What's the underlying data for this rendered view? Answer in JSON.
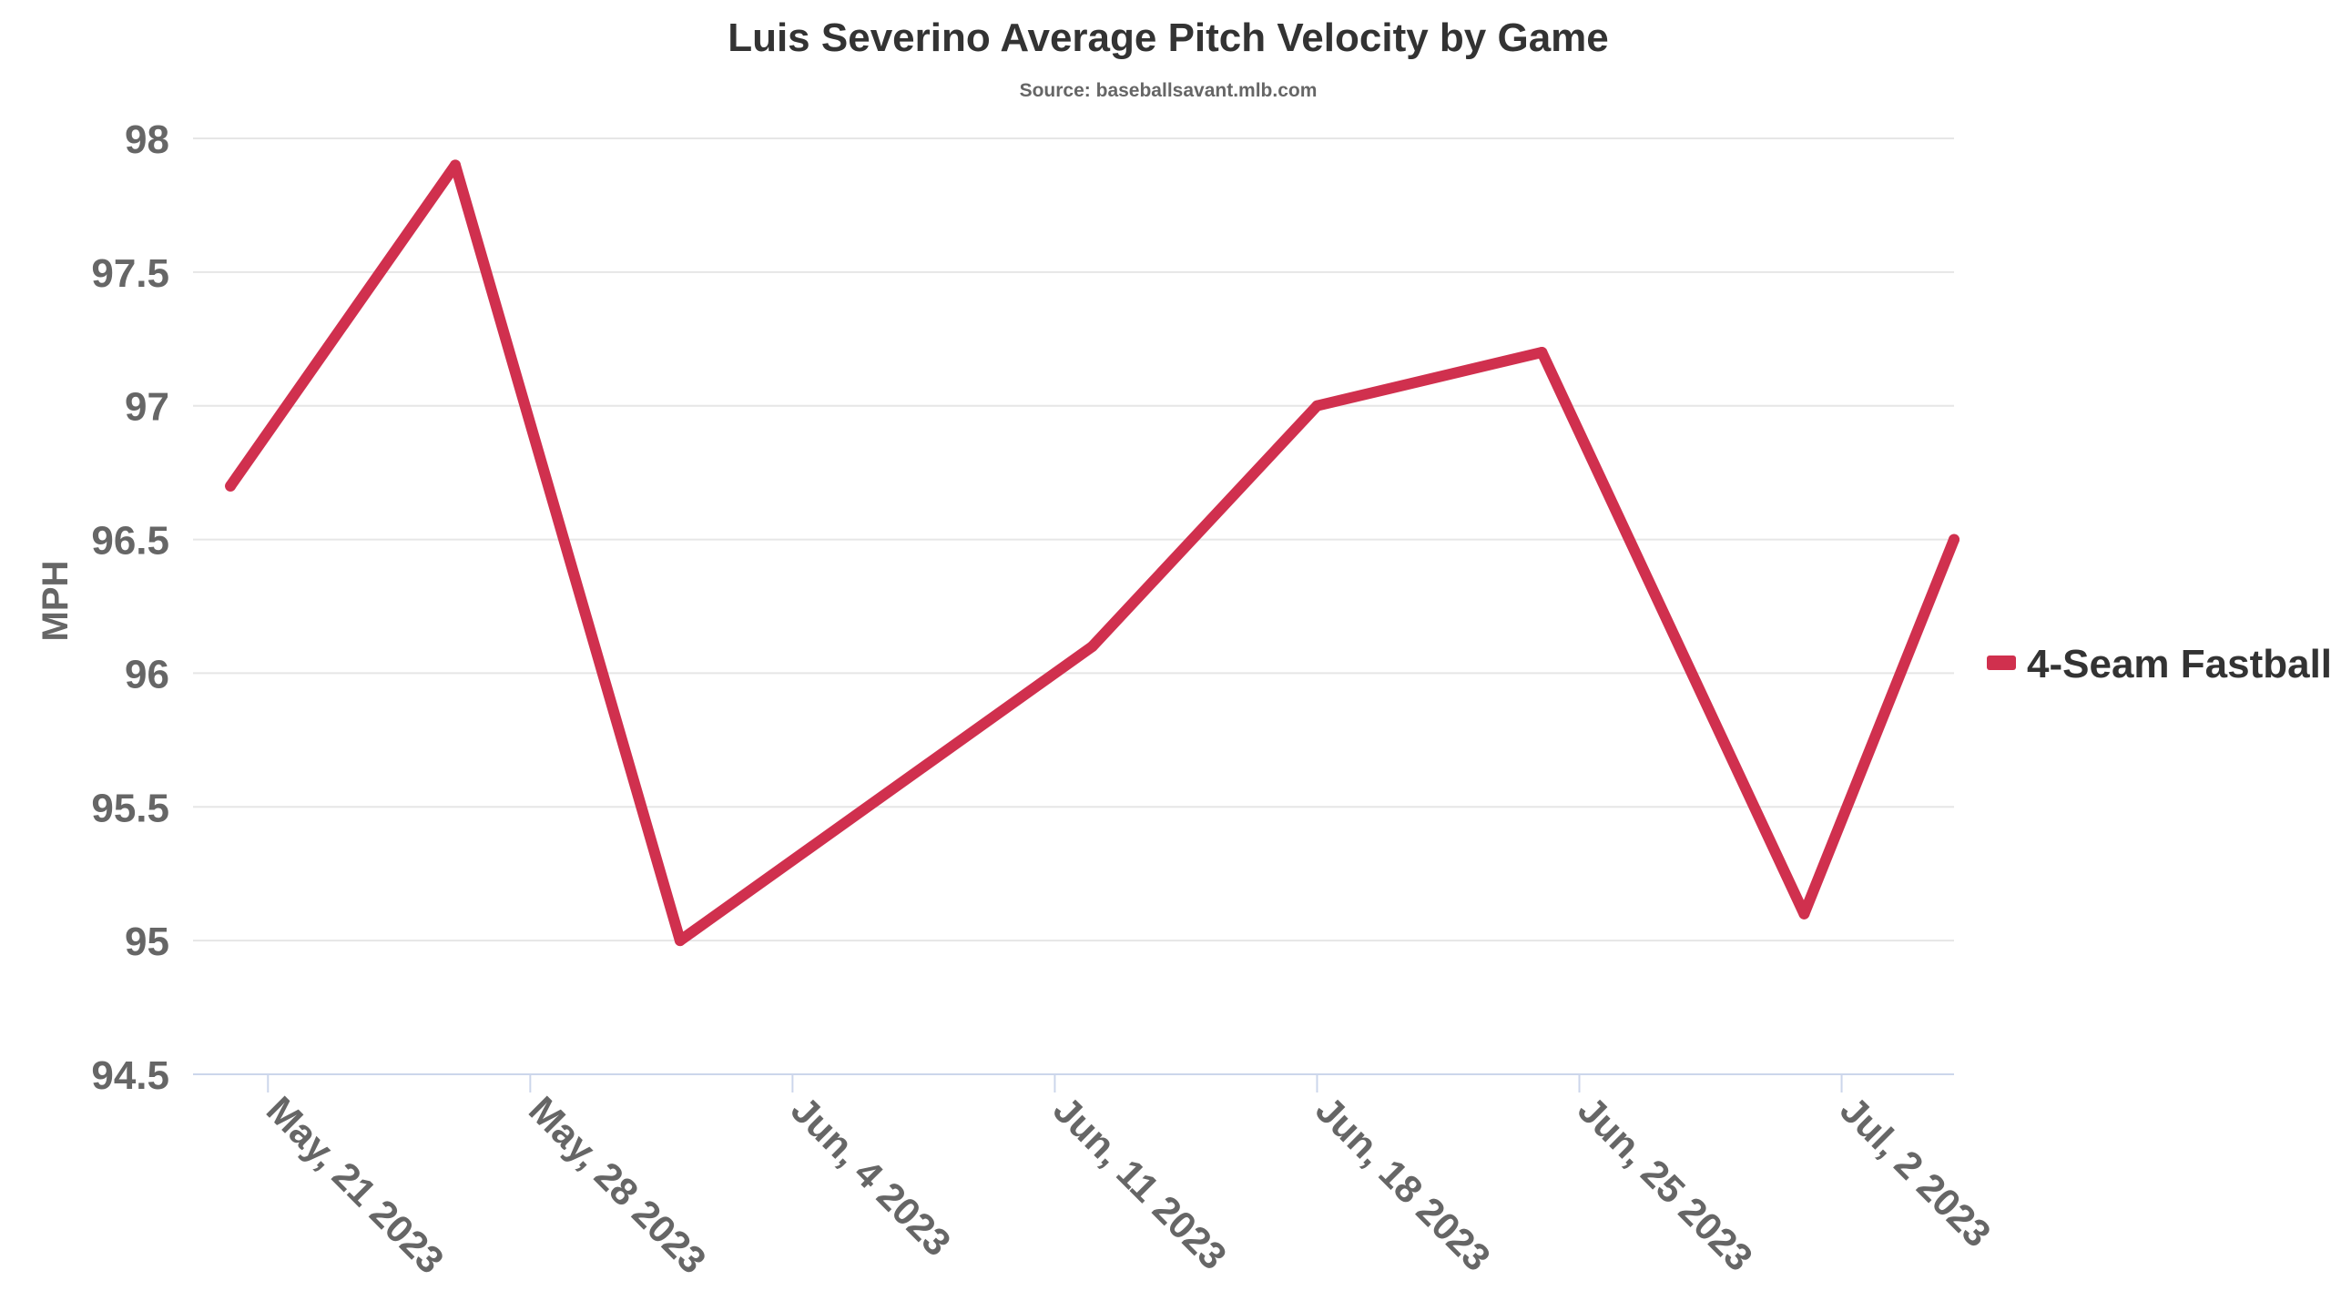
{
  "chart_data": {
    "type": "line",
    "title": "Luis Severino Average Pitch Velocity by Game",
    "subtitle": "Source: baseballsavant.mlb.com",
    "ylabel": "MPH",
    "xlabel": "",
    "ylim": [
      94.5,
      98
    ],
    "yticks": [
      "98",
      "97.5",
      "97",
      "96.5",
      "96",
      "95.5",
      "95",
      "94.5"
    ],
    "xlim": [
      "2023-05-19",
      "2023-07-05"
    ],
    "xticks": [
      {
        "date": "2023-05-21",
        "label": "May, 21 2023"
      },
      {
        "date": "2023-05-28",
        "label": "May, 28 2023"
      },
      {
        "date": "2023-06-04",
        "label": "Jun, 4 2023"
      },
      {
        "date": "2023-06-11",
        "label": "Jun, 11 2023"
      },
      {
        "date": "2023-06-18",
        "label": "Jun, 18 2023"
      },
      {
        "date": "2023-06-25",
        "label": "Jun, 25 2023"
      },
      {
        "date": "2023-07-02",
        "label": "Jul, 2 2023"
      }
    ],
    "grid": true,
    "legend_position": "right",
    "series": [
      {
        "name": "4-Seam Fastball",
        "color": "#d0304e",
        "points": [
          {
            "x": "2023-05-20",
            "y": 96.7
          },
          {
            "x": "2023-05-26",
            "y": 97.9
          },
          {
            "x": "2023-06-01",
            "y": 95.0
          },
          {
            "x": "2023-06-12",
            "y": 96.1
          },
          {
            "x": "2023-06-18",
            "y": 97.0
          },
          {
            "x": "2023-06-24",
            "y": 97.2
          },
          {
            "x": "2023-07-01",
            "y": 95.1
          },
          {
            "x": "2023-07-05",
            "y": 96.5
          }
        ]
      }
    ]
  }
}
